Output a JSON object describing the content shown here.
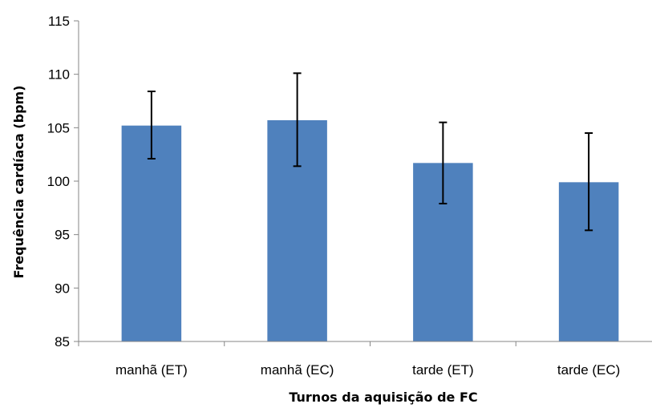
{
  "chart_data": {
    "type": "bar",
    "categories": [
      "manhã (ET)",
      "manhã (EC)",
      "tarde (ET)",
      "tarde (EC)"
    ],
    "values": [
      105.2,
      105.7,
      101.7,
      99.9
    ],
    "error_low": [
      102.1,
      101.4,
      97.9,
      95.4
    ],
    "error_high": [
      108.4,
      110.1,
      105.5,
      104.5
    ],
    "xlabel": "Turnos da aquisição  de FC",
    "ylabel": "Frequência cardíaca (bpm)",
    "ylim": [
      85,
      115
    ],
    "yticks": [
      "85",
      "90",
      "95",
      "100",
      "105",
      "110",
      "115"
    ],
    "grid": false,
    "legend": "none",
    "colors": {
      "bar": "#4f81bd",
      "error_bar": "#000000",
      "axis": "#868686"
    }
  }
}
